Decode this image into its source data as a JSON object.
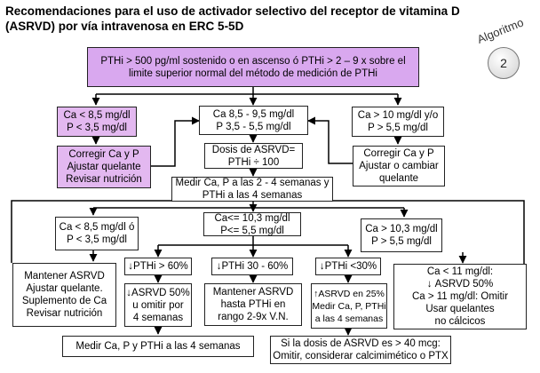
{
  "title": {
    "line1": "Recomendaciones para el uso de activador selectivo del receptor de vitamina D",
    "line2": "(ASRVD) por vía intravenosa en ERC 5-5D"
  },
  "badge": {
    "label": "Algoritmo",
    "number": "2"
  },
  "boxes": {
    "top": [
      "PTHi > 500 pg/ml sostenido o en ascenso ó PTHi > 2 – 9 x sobre el",
      "limite superior normal del método de medición de PTHi"
    ],
    "low_ca": [
      "Ca < 8,5 mg/dl",
      "P < 3,5 mg/dl"
    ],
    "normal_ca": [
      "Ca 8,5 - 9,5 mg/dl",
      "P 3,5 - 5,5 mg/dl"
    ],
    "high_ca": [
      "Ca > 10 mg/dl y/o",
      "P > 5,5 mg/dl"
    ],
    "correct_left": [
      "Corregir Ca y P",
      "Ajustar quelante",
      "Revisar nutrición"
    ],
    "dose": [
      "Dosis de ASRVD=",
      "PTHi ÷ 100"
    ],
    "correct_right": [
      "Corregir Ca y P",
      "Ajustar o cambiar",
      "quelante"
    ],
    "measure_mid": [
      "Medir Ca, P a las 2 - 4 semanas y",
      "PTHi a las 4 semanas"
    ],
    "low_ca2": [
      "Ca < 8,5 mg/dl ó",
      "P < 3,5 mg/dl"
    ],
    "mid_ca": [
      "Ca<= 10,3 mg/dl",
      "P<=  5,5 mg/dl"
    ],
    "high_ca2": [
      "Ca > 10,3 mg/dl",
      "P > 5,5 mg/dl"
    ],
    "maintain_left": [
      "Mantener ASRVD",
      "Ajustar quelante.",
      "Suplemento de Ca",
      "Revisar nutrición"
    ],
    "pth60": "PTHi > 60%",
    "pth3060": "PTHi 30 - 60%",
    "pth30": "PTHi <30%",
    "right_big": [
      "Ca < 11 mg/dl:",
      "ASRVD 50%",
      "Ca > 11 mg/dl: Omitir",
      "Usar quelantes",
      "no cálcicos"
    ],
    "reduce50": [
      "ASRVD 50%",
      "u omitir por",
      "4 semanas"
    ],
    "maintain_mid": [
      "Mantener ASRVD",
      "hasta PTHi en",
      "rango 2-9x V.N."
    ],
    "increase25": [
      "ASRVD en 25%",
      "Medir Ca, P, PTHi",
      "a las 4 semanas"
    ],
    "measure_bottom": "Medir Ca, P y PTHi a las 4 semanas",
    "final": [
      "Si la dosis de ASRVD es > 40 mcg:",
      "Omitir, considerar calcimimético o PTX"
    ]
  },
  "colors": {
    "box_fill_purple": "#e3b8f0",
    "line": "#000000"
  }
}
